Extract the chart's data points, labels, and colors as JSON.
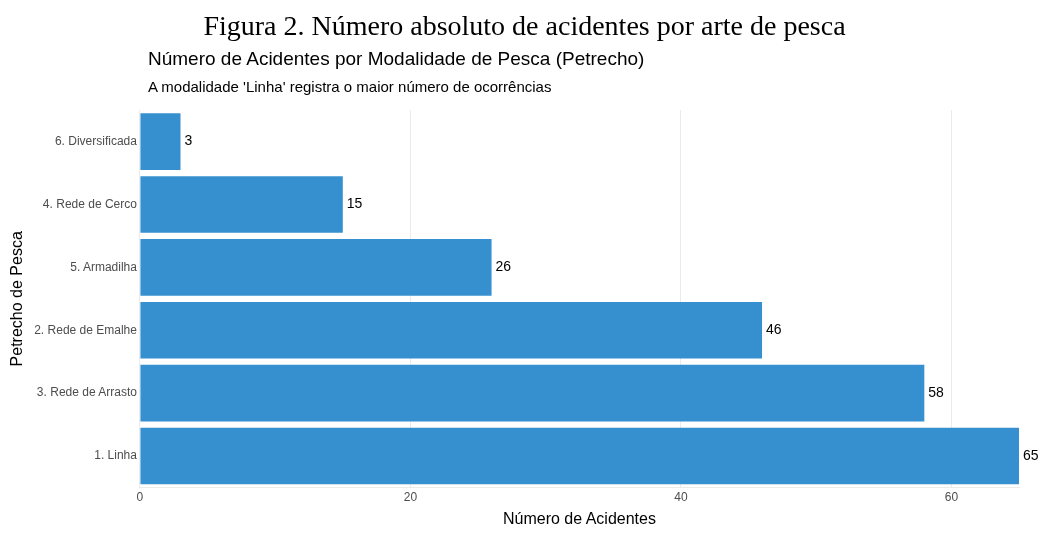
{
  "chart_data": {
    "type": "bar",
    "orientation": "horizontal",
    "title": "Figura 2. Número absoluto de acidentes por arte de pesca",
    "subtitle": "Número de Acidentes por Modalidade de Pesca (Petrecho)",
    "annotations": [
      "A modalidade 'Linha' registra o maior número de ocorrências"
    ],
    "xlabel": "Número de Acidentes",
    "ylabel": "Petrecho de Pesca",
    "categories": [
      "6. Diversificada",
      "4. Rede de Cerco",
      "5. Armadilha",
      "2. Rede de Emalhe",
      "3. Rede de Arrasto",
      "1. Linha"
    ],
    "values": [
      3,
      15,
      26,
      46,
      58,
      65
    ],
    "color": "#3690cf",
    "data_labels": true,
    "xlim": [
      0,
      65
    ],
    "xticks": [
      0,
      20,
      40,
      60
    ],
    "grid": "x",
    "legend": false
  }
}
